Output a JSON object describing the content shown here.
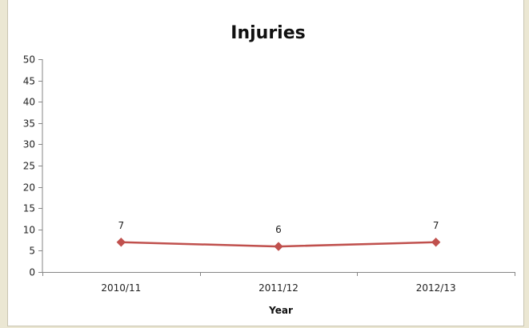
{
  "chart_data": {
    "type": "line",
    "title": "Injuries",
    "xlabel": "Year",
    "ylabel": "",
    "categories": [
      "2010/11",
      "2011/12",
      "2012/13"
    ],
    "series": [
      {
        "values": [
          7,
          6,
          7
        ],
        "color": "#c0504d"
      }
    ],
    "ylim": [
      0,
      50
    ],
    "yticks": [
      0,
      5,
      10,
      15,
      20,
      25,
      30,
      35,
      40,
      45,
      50
    ],
    "grid": false,
    "legend": "none",
    "data_labels": true,
    "marker": "diamond"
  }
}
